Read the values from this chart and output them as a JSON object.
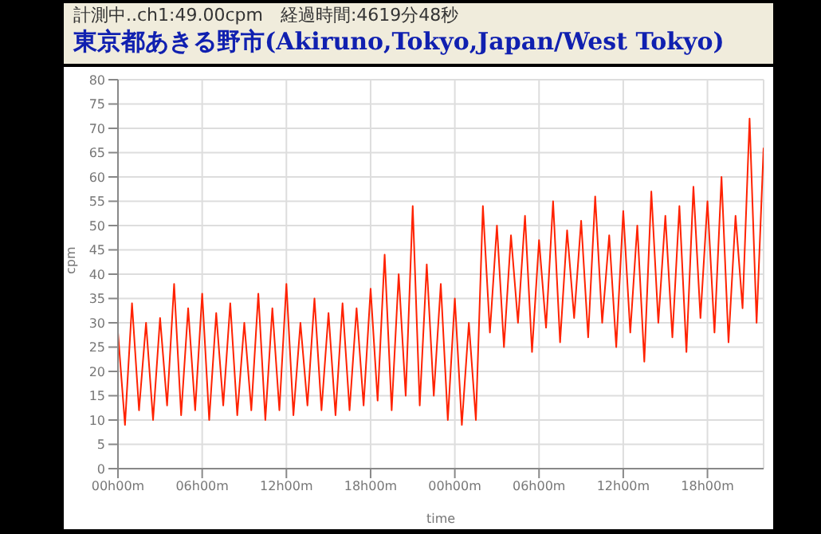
{
  "chart_data": {
    "type": "line",
    "xlabel": "time",
    "ylabel": "cpm",
    "annotations": [
      "計測中..ch1:49.00cpm　経過時間:4619分48秒",
      "東京都あきる野市(Akiruno,Tokyo,Japan/West Tokyo)"
    ],
    "categories": [
      "00h00m",
      null,
      null,
      null,
      null,
      null,
      null,
      null,
      null,
      null,
      null,
      null,
      "06h00m",
      null,
      null,
      null,
      null,
      null,
      null,
      null,
      null,
      null,
      null,
      null,
      "12h00m",
      null,
      null,
      null,
      null,
      null,
      null,
      null,
      null,
      null,
      null,
      null,
      "18h00m",
      null,
      null,
      null,
      null,
      null,
      null,
      null,
      null,
      null,
      null,
      null,
      "00h00m",
      null,
      null,
      null,
      null,
      null,
      null,
      null,
      null,
      null,
      null,
      null,
      "06h00m",
      null,
      null,
      null,
      null,
      null,
      null,
      null,
      null,
      null,
      null,
      null,
      "12h00m",
      null,
      null,
      null,
      null,
      null,
      null,
      null,
      null,
      null,
      null,
      null,
      "18h00m",
      null,
      null,
      null,
      null,
      null,
      null,
      null,
      null
    ],
    "series": [
      {
        "color": "#ff2200",
        "values": [
          28,
          9,
          34,
          12,
          30,
          10,
          31,
          13,
          38,
          11,
          33,
          12,
          36,
          10,
          32,
          13,
          34,
          11,
          30,
          12,
          36,
          10,
          33,
          12,
          38,
          11,
          30,
          13,
          35,
          12,
          32,
          11,
          34,
          12,
          33,
          13,
          37,
          14,
          44,
          12,
          40,
          15,
          54,
          13,
          42,
          15,
          38,
          10,
          35,
          9,
          30,
          10,
          54,
          28,
          50,
          25,
          48,
          30,
          52,
          24,
          47,
          29,
          55,
          26,
          49,
          31,
          51,
          27,
          56,
          30,
          48,
          25,
          53,
          28,
          50,
          22,
          57,
          30,
          52,
          27,
          54,
          24,
          58,
          31,
          55,
          28,
          60,
          26,
          52,
          33,
          72,
          30,
          66
        ]
      }
    ],
    "ylim": [
      0,
      80
    ],
    "yticks": [
      0,
      5,
      10,
      15,
      20,
      25,
      30,
      35,
      40,
      45,
      50,
      55,
      60,
      65,
      70,
      75,
      80
    ],
    "grid": true,
    "legend": false,
    "marker": "none",
    "line_style": "solid"
  }
}
